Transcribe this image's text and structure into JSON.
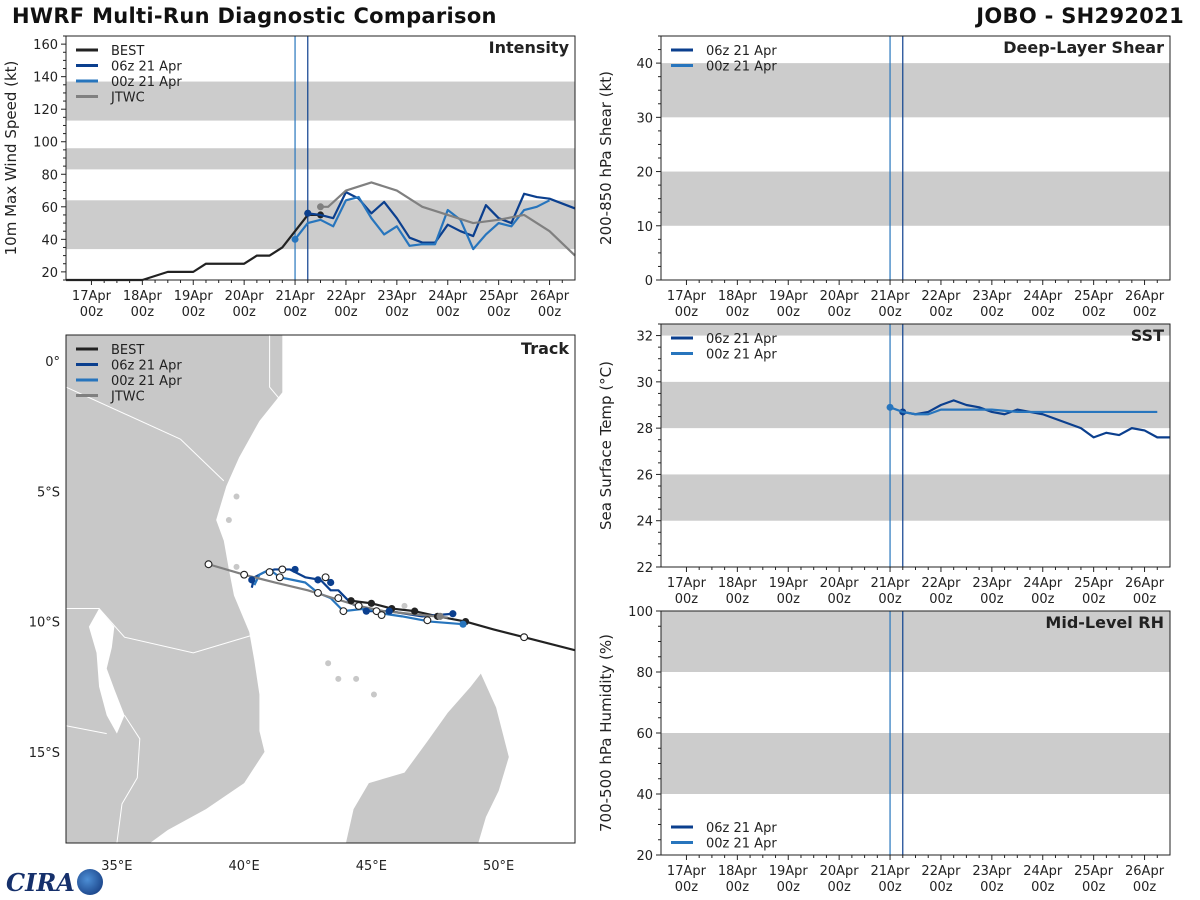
{
  "header": {
    "title": "HWRF Multi-Run Diagnostic Comparison",
    "storm": "JOBO - SH292021"
  },
  "colors": {
    "best": "#222222",
    "run06": "#0b3f8e",
    "run00": "#2775bd",
    "jtwc": "#808080",
    "band": "#cccccc",
    "land": "#c8c8c8",
    "vline1": "#2775bd",
    "vline2": "#0b3f8e"
  },
  "logo": {
    "text": "CIRA",
    "icon": "globe-icon"
  },
  "time_axis": {
    "day_labels": [
      "17Apr",
      "18Apr",
      "19Apr",
      "20Apr",
      "21Apr",
      "22Apr",
      "23Apr",
      "24Apr",
      "25Apr",
      "26Apr"
    ],
    "hour_label": "00z",
    "vertical_lines": [
      4.0,
      4.25
    ]
  },
  "chart_data": [
    {
      "id": "intensity",
      "type": "line",
      "title": "Intensity",
      "ylabel": "10m Max Wind Speed (kt)",
      "xlabel": "",
      "xlim": [
        -0.5,
        9.5
      ],
      "ylim": [
        15,
        165
      ],
      "yticks": [
        20,
        40,
        60,
        80,
        100,
        120,
        140,
        160
      ],
      "bands": [
        [
          34,
          64
        ],
        [
          83,
          96
        ],
        [
          113,
          137
        ]
      ],
      "legend": {
        "position": "top-left",
        "entries": [
          "BEST",
          "06z 21 Apr",
          "00z 21 Apr",
          "JTWC"
        ]
      },
      "series": [
        {
          "name": "BEST",
          "color_key": "best",
          "x": [
            -0.5,
            0,
            0.5,
            0.75,
            1,
            1.5,
            2,
            2.25,
            2.5,
            3,
            3.25,
            3.5,
            3.75,
            4,
            4.25,
            4.5
          ],
          "y": [
            15,
            15,
            15,
            15,
            15,
            20,
            20,
            25,
            25,
            25,
            30,
            30,
            35,
            45,
            55,
            55
          ],
          "markers": [
            [
              4.25,
              56
            ],
            [
              4.5,
              55
            ]
          ]
        },
        {
          "name": "06z 21 Apr",
          "color_key": "run06",
          "x": [
            4.25,
            4.5,
            4.75,
            5,
            5.25,
            5.5,
            5.75,
            6,
            6.25,
            6.5,
            6.75,
            7,
            7.25,
            7.5,
            7.75,
            8,
            8.25,
            8.5,
            8.75,
            9,
            9.25,
            9.5
          ],
          "y": [
            56,
            55,
            53,
            69,
            65,
            56,
            63,
            53,
            41,
            38,
            38,
            49,
            45,
            42,
            61,
            53,
            50,
            68,
            66,
            65,
            62,
            59
          ],
          "markers": [
            [
              4.25,
              56
            ]
          ]
        },
        {
          "name": "00z 21 Apr",
          "color_key": "run00",
          "x": [
            4,
            4.25,
            4.5,
            4.75,
            5,
            5.25,
            5.5,
            5.75,
            6,
            6.25,
            6.5,
            6.75,
            7,
            7.25,
            7.5,
            7.75,
            8,
            8.25,
            8.5,
            8.75,
            9
          ],
          "y": [
            40,
            50,
            52,
            48,
            64,
            66,
            53,
            43,
            48,
            36,
            37,
            37,
            58,
            52,
            34,
            43,
            50,
            48,
            58,
            60,
            64
          ],
          "markers": [
            [
              4,
              40
            ]
          ]
        },
        {
          "name": "JTWC",
          "color_key": "jtwc",
          "x": [
            4.5,
            4.65,
            5,
            5.5,
            6,
            6.5,
            7,
            7.5,
            8,
            8.5,
            9,
            9.5
          ],
          "y": [
            60,
            60,
            70,
            75,
            70,
            60,
            55,
            50,
            52,
            55,
            45,
            30
          ],
          "markers": [
            [
              4.5,
              60
            ]
          ]
        }
      ]
    },
    {
      "id": "shear",
      "type": "line",
      "title": "Deep-Layer Shear",
      "ylabel": "200-850 hPa Shear (kt)",
      "xlabel": "",
      "xlim": [
        -0.5,
        9.5
      ],
      "ylim": [
        0,
        45
      ],
      "yticks": [
        0,
        10,
        20,
        30,
        40
      ],
      "bands": [
        [
          10,
          20
        ],
        [
          30,
          40
        ]
      ],
      "legend": {
        "position": "top-left",
        "entries": [
          "06z 21 Apr",
          "00z 21 Apr"
        ]
      },
      "series": []
    },
    {
      "id": "sst",
      "type": "line",
      "title": "SST",
      "ylabel": "Sea Surface Temp (°C)",
      "xlabel": "",
      "xlim": [
        -0.5,
        9.5
      ],
      "ylim": [
        22,
        32.5
      ],
      "yticks": [
        22,
        24,
        26,
        28,
        30,
        32
      ],
      "bands": [
        [
          24,
          26
        ],
        [
          28,
          30
        ],
        [
          32,
          32.5
        ]
      ],
      "legend": {
        "position": "top-left",
        "entries": [
          "06z 21 Apr",
          "00z 21 Apr"
        ]
      },
      "series": [
        {
          "name": "06z 21 Apr",
          "color_key": "run06",
          "x": [
            4.25,
            4.5,
            4.75,
            5,
            5.25,
            5.5,
            5.75,
            6,
            6.25,
            6.5,
            6.75,
            7,
            7.25,
            7.5,
            7.75,
            8,
            8.25,
            8.5,
            8.75,
            9,
            9.25,
            9.5
          ],
          "y": [
            28.7,
            28.6,
            28.7,
            29.0,
            29.2,
            29.0,
            28.9,
            28.7,
            28.6,
            28.8,
            28.7,
            28.6,
            28.4,
            28.2,
            28.0,
            27.6,
            27.8,
            27.7,
            28.0,
            27.9,
            27.6,
            27.6
          ],
          "markers": [
            [
              4.25,
              28.7
            ]
          ]
        },
        {
          "name": "00z 21 Apr",
          "color_key": "run00",
          "x": [
            4,
            4.25,
            4.5,
            4.75,
            5,
            5.5,
            6,
            6.5,
            7,
            7.5,
            8,
            8.5,
            9,
            9.25
          ],
          "y": [
            28.9,
            28.7,
            28.6,
            28.6,
            28.8,
            28.8,
            28.8,
            28.7,
            28.7,
            28.7,
            28.7,
            28.7,
            28.7,
            28.7
          ],
          "markers": [
            [
              4,
              28.9
            ]
          ]
        }
      ]
    },
    {
      "id": "rh",
      "type": "line",
      "title": "Mid-Level RH",
      "ylabel": "700-500 hPa Humidity (%)",
      "xlabel": "",
      "xlim": [
        -0.5,
        9.5
      ],
      "ylim": [
        20,
        100
      ],
      "yticks": [
        20,
        40,
        60,
        80,
        100
      ],
      "bands": [
        [
          40,
          60
        ],
        [
          80,
          100
        ]
      ],
      "legend": {
        "position": "bottom-left",
        "entries": [
          "06z 21 Apr",
          "00z 21 Apr"
        ]
      },
      "series": []
    },
    {
      "id": "track",
      "type": "scatter",
      "title": "Track",
      "xlabel": "",
      "ylabel": "",
      "xlim": [
        33.0,
        53.0
      ],
      "ylim": [
        -18.5,
        1.0
      ],
      "xticks": [
        35,
        40,
        45,
        50
      ],
      "xtick_labels": [
        "35°E",
        "40°E",
        "45°E",
        "50°E"
      ],
      "yticks": [
        0,
        -5,
        -10,
        -15
      ],
      "ytick_labels": [
        "0°",
        "5°S",
        "10°S",
        "15°S"
      ],
      "legend": {
        "position": "top-left",
        "entries": [
          "BEST",
          "06z 21 Apr",
          "00z 21 Apr",
          "JTWC"
        ]
      },
      "series": [
        {
          "name": "BEST",
          "color_key": "best",
          "lon": [
            53.0,
            51.0,
            49.8,
            48.7,
            47.6,
            46.7,
            45.8,
            45.0,
            44.2
          ],
          "lat": [
            -11.1,
            -10.6,
            -10.3,
            -10.0,
            -9.8,
            -9.6,
            -9.5,
            -9.3,
            -9.2
          ],
          "filled": [
            [
              48.7,
              -10.0
            ],
            [
              47.6,
              -9.8
            ],
            [
              46.7,
              -9.6
            ],
            [
              45.8,
              -9.5
            ],
            [
              45.0,
              -9.3
            ],
            [
              44.2,
              -9.2
            ]
          ],
          "open": [
            [
              51.0,
              -10.6
            ]
          ]
        },
        {
          "name": "06z 21 Apr",
          "color_key": "run06",
          "lon": [
            48.2,
            47.0,
            45.7,
            44.8,
            44.2,
            43.7,
            43.4,
            43.0,
            42.4,
            41.8,
            41.2,
            40.8,
            40.4,
            40.3
          ],
          "lat": [
            -9.7,
            -9.8,
            -9.6,
            -9.6,
            -9.3,
            -8.8,
            -8.8,
            -8.4,
            -8.3,
            -8.0,
            -8.0,
            -8.1,
            -8.3,
            -8.7
          ],
          "filled": [
            [
              48.2,
              -9.7
            ],
            [
              45.7,
              -9.6
            ],
            [
              44.8,
              -9.6
            ],
            [
              43.4,
              -8.5
            ],
            [
              42.9,
              -8.4
            ],
            [
              42.0,
              -8.0
            ],
            [
              40.3,
              -8.4
            ]
          ],
          "open": [
            [
              45.2,
              -9.6
            ],
            [
              43.7,
              -9.1
            ],
            [
              43.2,
              -8.3
            ],
            [
              41.5,
              -8.0
            ]
          ]
        },
        {
          "name": "00z 21 Apr",
          "color_key": "run00",
          "lon": [
            48.6,
            47.3,
            46.2,
            45.5,
            44.8,
            43.9,
            43.4,
            42.9,
            42.4,
            41.9,
            41.4,
            41.0,
            40.6,
            40.4
          ],
          "lat": [
            -10.1,
            -10.0,
            -9.8,
            -9.7,
            -9.5,
            -9.6,
            -9.1,
            -8.9,
            -8.5,
            -8.4,
            -8.3,
            -8.0,
            -8.2,
            -8.6
          ],
          "filled": [
            [
              48.6,
              -10.1
            ]
          ],
          "open": [
            [
              47.2,
              -9.95
            ],
            [
              45.4,
              -9.75
            ],
            [
              43.9,
              -9.6
            ],
            [
              42.9,
              -8.9
            ],
            [
              41.4,
              -8.3
            ],
            [
              41.0,
              -8.1
            ]
          ]
        },
        {
          "name": "JTWC",
          "color_key": "jtwc",
          "lon": [
            48.0,
            46.5,
            45.5,
            44.5,
            43.5,
            42.5,
            41.2,
            40.0,
            38.6
          ],
          "lat": [
            -9.85,
            -9.7,
            -9.6,
            -9.4,
            -9.1,
            -8.8,
            -8.5,
            -8.2,
            -7.8
          ],
          "filled": [
            [
              47.7,
              -9.8
            ]
          ],
          "open": [
            [
              44.5,
              -9.4
            ],
            [
              40.0,
              -8.2
            ],
            [
              38.6,
              -7.8
            ]
          ]
        }
      ]
    }
  ]
}
